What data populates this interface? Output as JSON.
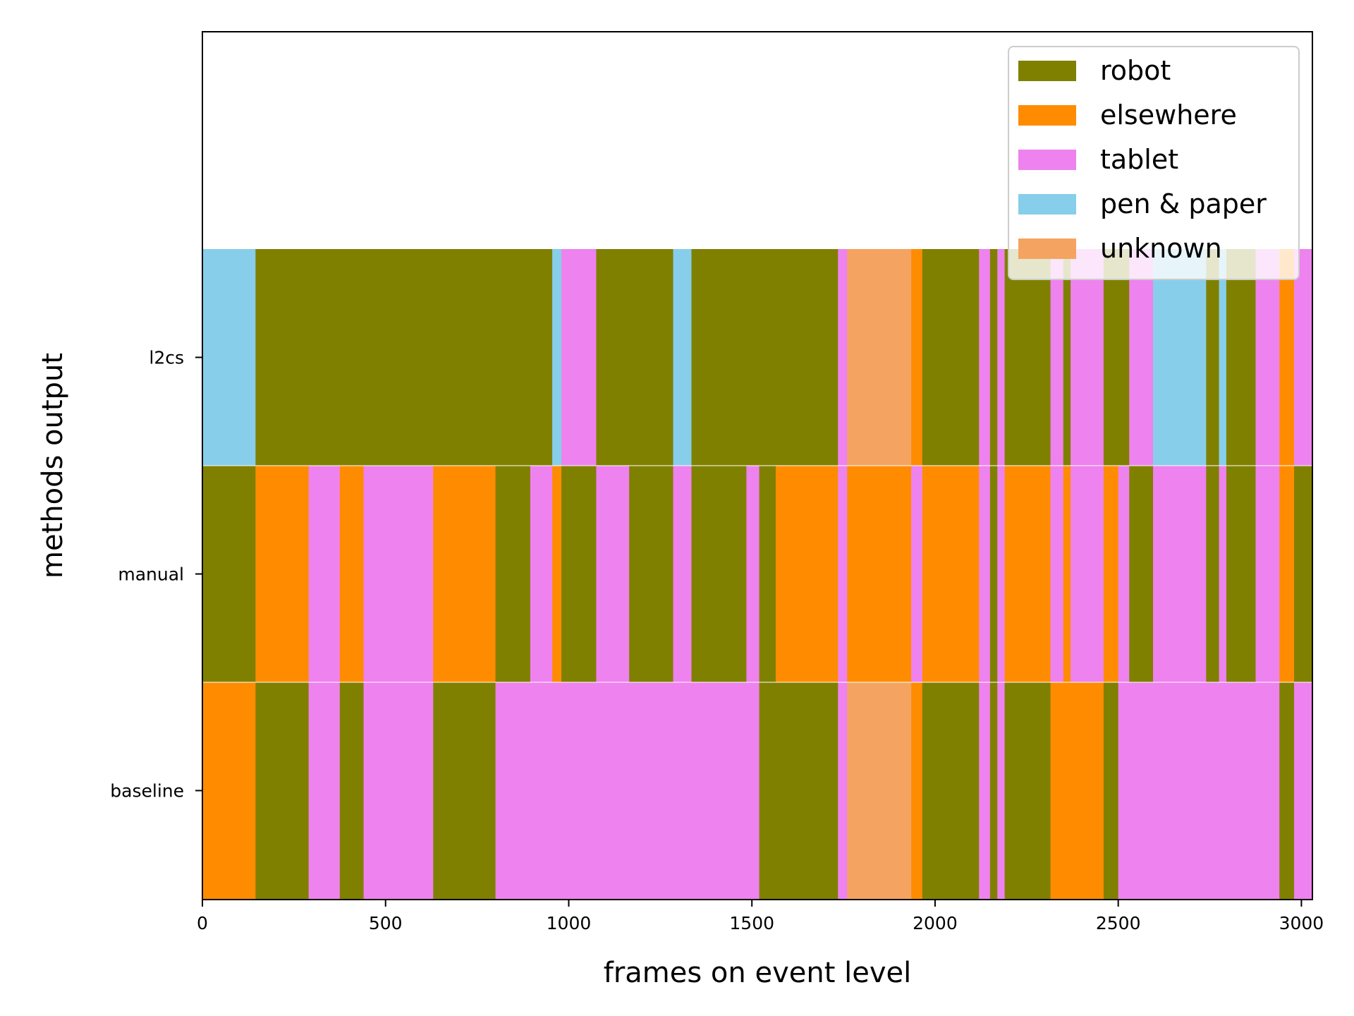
{
  "chart_data": {
    "type": "bar",
    "subtype": "horizontal-segment-timeline",
    "xlabel": "frames on event level",
    "ylabel": "methods output",
    "xlim": [
      0,
      3030
    ],
    "xticks": [
      0,
      500,
      1000,
      1500,
      2000,
      2500,
      3000
    ],
    "xtick_labels": [
      "0",
      "500",
      "1000",
      "1500",
      "2000",
      "2500",
      "3000"
    ],
    "legend_position": "top-right",
    "categories": [
      {
        "name": "robot",
        "color": "#808000"
      },
      {
        "name": "elsewhere",
        "color": "#FF8C00"
      },
      {
        "name": "tablet",
        "color": "#EE82EE"
      },
      {
        "name": "pen & paper",
        "color": "#87CEEB"
      },
      {
        "name": "unknown",
        "color": "#F4A460"
      }
    ],
    "rows": [
      {
        "label": "l2cs",
        "segments": [
          {
            "start": 0,
            "end": 145,
            "category": "pen & paper"
          },
          {
            "start": 145,
            "end": 955,
            "category": "robot"
          },
          {
            "start": 955,
            "end": 980,
            "category": "pen & paper"
          },
          {
            "start": 980,
            "end": 1075,
            "category": "tablet"
          },
          {
            "start": 1075,
            "end": 1285,
            "category": "robot"
          },
          {
            "start": 1285,
            "end": 1335,
            "category": "pen & paper"
          },
          {
            "start": 1335,
            "end": 1735,
            "category": "robot"
          },
          {
            "start": 1735,
            "end": 1760,
            "category": "tablet"
          },
          {
            "start": 1760,
            "end": 1935,
            "category": "unknown"
          },
          {
            "start": 1935,
            "end": 1965,
            "category": "elsewhere"
          },
          {
            "start": 1965,
            "end": 2120,
            "category": "robot"
          },
          {
            "start": 2120,
            "end": 2150,
            "category": "tablet"
          },
          {
            "start": 2150,
            "end": 2170,
            "category": "robot"
          },
          {
            "start": 2170,
            "end": 2190,
            "category": "tablet"
          },
          {
            "start": 2190,
            "end": 2315,
            "category": "robot"
          },
          {
            "start": 2315,
            "end": 2350,
            "category": "tablet"
          },
          {
            "start": 2350,
            "end": 2370,
            "category": "robot"
          },
          {
            "start": 2370,
            "end": 2460,
            "category": "tablet"
          },
          {
            "start": 2460,
            "end": 2530,
            "category": "robot"
          },
          {
            "start": 2530,
            "end": 2595,
            "category": "tablet"
          },
          {
            "start": 2595,
            "end": 2740,
            "category": "pen & paper"
          },
          {
            "start": 2740,
            "end": 2775,
            "category": "robot"
          },
          {
            "start": 2775,
            "end": 2795,
            "category": "pen & paper"
          },
          {
            "start": 2795,
            "end": 2875,
            "category": "robot"
          },
          {
            "start": 2875,
            "end": 2940,
            "category": "tablet"
          },
          {
            "start": 2940,
            "end": 2980,
            "category": "elsewhere"
          },
          {
            "start": 2980,
            "end": 3030,
            "category": "tablet"
          }
        ]
      },
      {
        "label": "manual",
        "segments": [
          {
            "start": 0,
            "end": 145,
            "category": "robot"
          },
          {
            "start": 145,
            "end": 290,
            "category": "elsewhere"
          },
          {
            "start": 290,
            "end": 375,
            "category": "tablet"
          },
          {
            "start": 375,
            "end": 440,
            "category": "elsewhere"
          },
          {
            "start": 440,
            "end": 630,
            "category": "tablet"
          },
          {
            "start": 630,
            "end": 800,
            "category": "elsewhere"
          },
          {
            "start": 800,
            "end": 895,
            "category": "robot"
          },
          {
            "start": 895,
            "end": 955,
            "category": "tablet"
          },
          {
            "start": 955,
            "end": 980,
            "category": "elsewhere"
          },
          {
            "start": 980,
            "end": 1075,
            "category": "robot"
          },
          {
            "start": 1075,
            "end": 1165,
            "category": "tablet"
          },
          {
            "start": 1165,
            "end": 1285,
            "category": "robot"
          },
          {
            "start": 1285,
            "end": 1335,
            "category": "tablet"
          },
          {
            "start": 1335,
            "end": 1485,
            "category": "robot"
          },
          {
            "start": 1485,
            "end": 1520,
            "category": "tablet"
          },
          {
            "start": 1520,
            "end": 1565,
            "category": "robot"
          },
          {
            "start": 1565,
            "end": 1735,
            "category": "elsewhere"
          },
          {
            "start": 1735,
            "end": 1760,
            "category": "tablet"
          },
          {
            "start": 1760,
            "end": 1935,
            "category": "elsewhere"
          },
          {
            "start": 1935,
            "end": 1965,
            "category": "tablet"
          },
          {
            "start": 1965,
            "end": 2120,
            "category": "elsewhere"
          },
          {
            "start": 2120,
            "end": 2150,
            "category": "tablet"
          },
          {
            "start": 2150,
            "end": 2170,
            "category": "robot"
          },
          {
            "start": 2170,
            "end": 2190,
            "category": "tablet"
          },
          {
            "start": 2190,
            "end": 2315,
            "category": "elsewhere"
          },
          {
            "start": 2315,
            "end": 2350,
            "category": "tablet"
          },
          {
            "start": 2350,
            "end": 2370,
            "category": "elsewhere"
          },
          {
            "start": 2370,
            "end": 2460,
            "category": "tablet"
          },
          {
            "start": 2460,
            "end": 2500,
            "category": "elsewhere"
          },
          {
            "start": 2500,
            "end": 2530,
            "category": "tablet"
          },
          {
            "start": 2530,
            "end": 2595,
            "category": "robot"
          },
          {
            "start": 2595,
            "end": 2740,
            "category": "tablet"
          },
          {
            "start": 2740,
            "end": 2775,
            "category": "robot"
          },
          {
            "start": 2775,
            "end": 2795,
            "category": "tablet"
          },
          {
            "start": 2795,
            "end": 2875,
            "category": "robot"
          },
          {
            "start": 2875,
            "end": 2940,
            "category": "tablet"
          },
          {
            "start": 2940,
            "end": 2980,
            "category": "elsewhere"
          },
          {
            "start": 2980,
            "end": 3030,
            "category": "robot"
          }
        ]
      },
      {
        "label": "baseline",
        "segments": [
          {
            "start": 0,
            "end": 145,
            "category": "elsewhere"
          },
          {
            "start": 145,
            "end": 290,
            "category": "robot"
          },
          {
            "start": 290,
            "end": 375,
            "category": "tablet"
          },
          {
            "start": 375,
            "end": 440,
            "category": "robot"
          },
          {
            "start": 440,
            "end": 630,
            "category": "tablet"
          },
          {
            "start": 630,
            "end": 800,
            "category": "robot"
          },
          {
            "start": 800,
            "end": 1520,
            "category": "tablet"
          },
          {
            "start": 1520,
            "end": 1735,
            "category": "robot"
          },
          {
            "start": 1735,
            "end": 1760,
            "category": "tablet"
          },
          {
            "start": 1760,
            "end": 1935,
            "category": "unknown"
          },
          {
            "start": 1935,
            "end": 1965,
            "category": "elsewhere"
          },
          {
            "start": 1965,
            "end": 2120,
            "category": "robot"
          },
          {
            "start": 2120,
            "end": 2150,
            "category": "tablet"
          },
          {
            "start": 2150,
            "end": 2170,
            "category": "robot"
          },
          {
            "start": 2170,
            "end": 2190,
            "category": "tablet"
          },
          {
            "start": 2190,
            "end": 2315,
            "category": "robot"
          },
          {
            "start": 2315,
            "end": 2460,
            "category": "elsewhere"
          },
          {
            "start": 2460,
            "end": 2500,
            "category": "robot"
          },
          {
            "start": 2500,
            "end": 2940,
            "category": "tablet"
          },
          {
            "start": 2940,
            "end": 2980,
            "category": "robot"
          },
          {
            "start": 2980,
            "end": 3030,
            "category": "tablet"
          }
        ]
      }
    ]
  }
}
